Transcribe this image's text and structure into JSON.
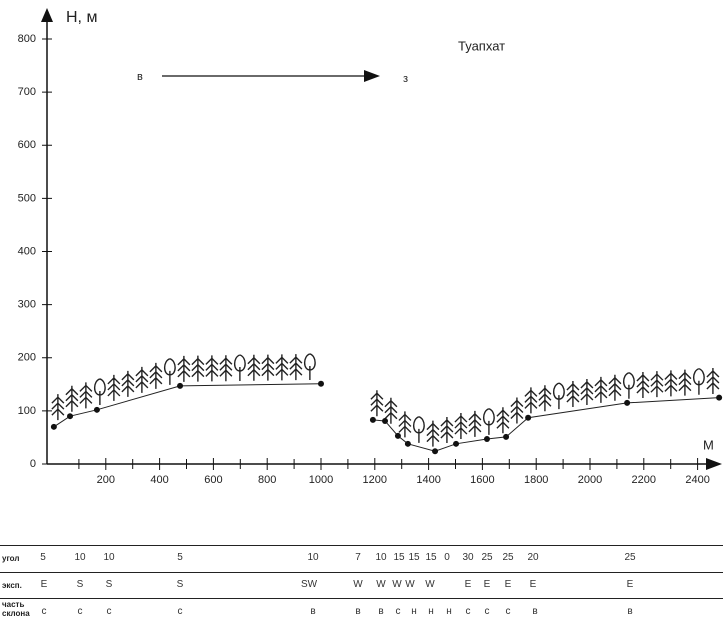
{
  "chart_data": {
    "type": "line",
    "title": "Туапхат",
    "y_label": "H, м",
    "x_label": "М",
    "annotations": {
      "from": "в",
      "to": "з"
    },
    "x": [
      7,
      67,
      167,
      476,
      1000,
      null,
      1193,
      1238,
      1286,
      1323,
      1424,
      1502,
      1617,
      1688,
      1770,
      2138,
      2480
    ],
    "values": [
      70,
      90,
      102,
      147,
      151,
      null,
      83,
      81,
      53,
      38,
      24,
      38,
      47,
      51,
      87,
      115,
      125
    ],
    "color": "#222",
    "xlim": [
      0,
      2480
    ],
    "ylim": [
      0,
      800
    ],
    "xticks": [
      200,
      400,
      600,
      800,
      1000,
      1200,
      1400,
      1600,
      1800,
      2000,
      2200,
      2400
    ],
    "yticks": [
      0,
      100,
      200,
      300,
      400,
      500,
      600,
      700,
      800
    ]
  },
  "table": {
    "rows": [
      {
        "label": "угол",
        "cells": [
          5,
          10,
          10,
          5,
          10,
          7,
          10,
          15,
          15,
          15,
          0,
          30,
          25,
          25,
          20,
          25
        ]
      },
      {
        "label": "эксп.",
        "cells": [
          "E",
          "S",
          "S",
          "S",
          "SW",
          "W",
          "W",
          "W",
          "W",
          "W",
          "E",
          "E",
          "E",
          "E",
          "E"
        ]
      },
      {
        "label": "часть склона",
        "cells": [
          "с",
          "с",
          "с",
          "с",
          "в",
          "в",
          "в",
          "с",
          "н",
          "н",
          "н",
          "с",
          "с",
          "с",
          "в",
          "в"
        ]
      }
    ]
  }
}
